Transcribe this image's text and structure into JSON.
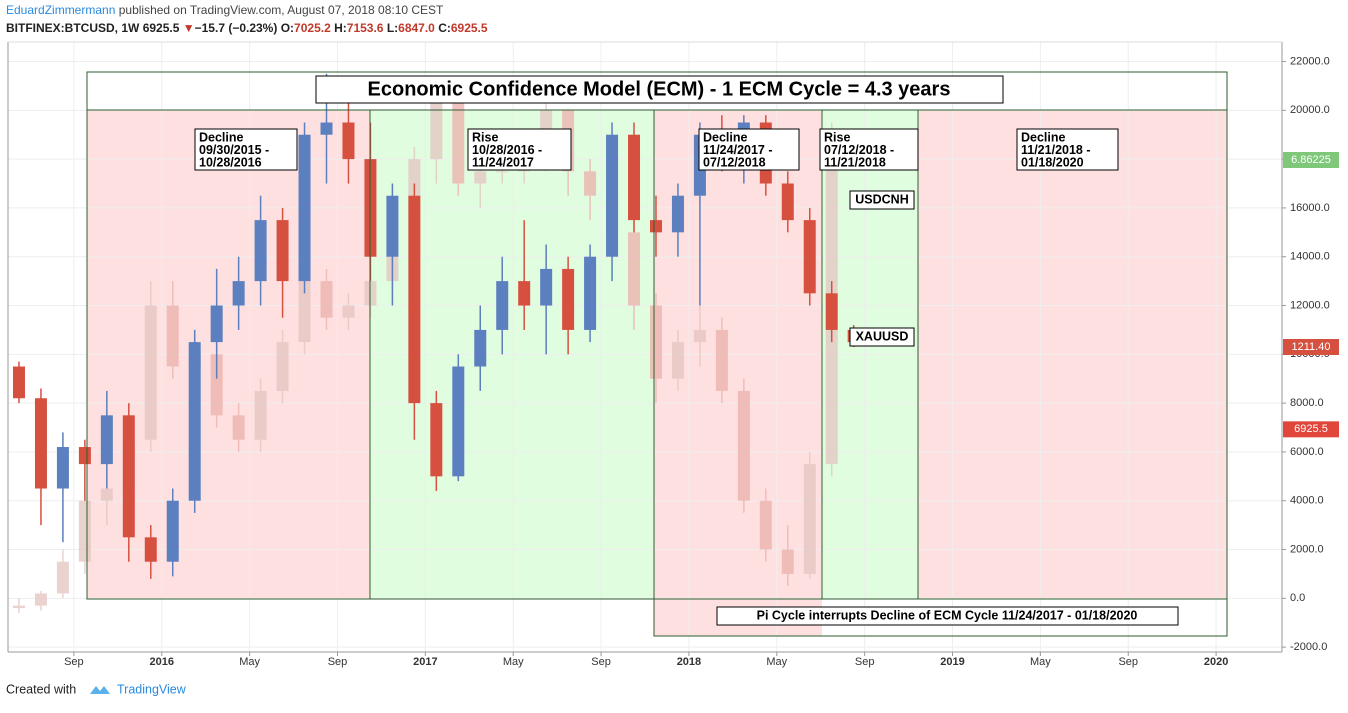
{
  "header": {
    "author": "EduardZimmermann",
    "published": "published on TradingView.com, August 07, 2018 08:10 CEST",
    "symbol": "BITFINEX:BTCUSD, 1W",
    "last": "6925.5",
    "arrow": "▼",
    "change": "−15.7 (−0.23%)",
    "ohlc": [
      {
        "label": "O:",
        "value": "7025.2"
      },
      {
        "label": "H:",
        "value": "7153.6"
      },
      {
        "label": "L:",
        "value": "6847.0"
      },
      {
        "label": "C:",
        "value": "6925.5"
      }
    ]
  },
  "chart_data": {
    "type": "candlestick",
    "title": "Economic Confidence Model (ECM) - 1 ECM Cycle = 4.3 years",
    "xlim": [
      "2015-06",
      "2020-04"
    ],
    "xticks": [
      {
        "value": "2015-09",
        "label": "Sep"
      },
      {
        "value": "2016-01",
        "label": "2016"
      },
      {
        "value": "2016-05",
        "label": "May"
      },
      {
        "value": "2016-09",
        "label": "Sep"
      },
      {
        "value": "2017-01",
        "label": "2017"
      },
      {
        "value": "2017-05",
        "label": "May"
      },
      {
        "value": "2017-09",
        "label": "Sep"
      },
      {
        "value": "2018-01",
        "label": "2018"
      },
      {
        "value": "2018-05",
        "label": "May"
      },
      {
        "value": "2018-09",
        "label": "Sep"
      },
      {
        "value": "2019-01",
        "label": "2019"
      },
      {
        "value": "2019-05",
        "label": "May"
      },
      {
        "value": "2019-09",
        "label": "Sep"
      },
      {
        "value": "2020-01",
        "label": "2020"
      }
    ],
    "ylim": [
      -2200,
      22800
    ],
    "yticks": [
      {
        "value": -2000,
        "label": "-2000.0"
      },
      {
        "value": 0,
        "label": "0.0"
      },
      {
        "value": 2000,
        "label": "2000.0"
      },
      {
        "value": 4000,
        "label": "4000.0"
      },
      {
        "value": 6000,
        "label": "6000.0"
      },
      {
        "value": 8000,
        "label": "8000.0"
      },
      {
        "value": 10000,
        "label": "10000.0"
      },
      {
        "value": 12000,
        "label": "12000.0"
      },
      {
        "value": 14000,
        "label": "14000.0"
      },
      {
        "value": 16000,
        "label": "16000.0"
      },
      {
        "value": 18000,
        "label": "18000.0"
      },
      {
        "value": 20000,
        "label": "20000.0"
      },
      {
        "value": 22000,
        "label": "22000.0"
      }
    ],
    "grid": true,
    "series": [
      {
        "color_up": "#e3c4c0",
        "color_down": "#ecb0ab",
        "opacity": 0.75,
        "x": [
          "2015-06",
          "2015-07",
          "2015-08",
          "2015-09",
          "2015-10",
          "2015-11",
          "2015-12",
          "2016-01",
          "2016-02",
          "2016-03",
          "2016-04",
          "2016-05",
          "2016-06",
          "2016-07",
          "2016-08",
          "2016-09",
          "2016-10",
          "2016-11",
          "2016-12",
          "2017-01",
          "2017-02",
          "2017-03",
          "2017-04",
          "2017-05",
          "2017-06",
          "2017-07",
          "2017-08",
          "2017-09",
          "2017-10",
          "2017-11",
          "2017-12",
          "2018-01",
          "2018-02",
          "2018-03",
          "2018-04",
          "2018-05",
          "2018-06",
          "2018-07"
        ],
        "open": [
          -400,
          -300,
          200,
          1500,
          4000,
          4500,
          6500,
          12000,
          9500,
          10000,
          7500,
          6500,
          8500,
          10500,
          13000,
          11500,
          12000,
          13000,
          14000,
          18000,
          20500,
          17000,
          17500,
          17500,
          18000,
          20000,
          17500,
          16500,
          15000,
          12000,
          9000,
          10500,
          11000,
          8500,
          4000,
          2000,
          1000,
          5500
        ],
        "high": [
          0,
          300,
          2000,
          4500,
          5500,
          7000,
          13000,
          13000,
          11000,
          10500,
          8000,
          9000,
          11000,
          13500,
          13500,
          12500,
          13500,
          15000,
          18500,
          21000,
          21000,
          18500,
          19000,
          18500,
          20500,
          20000,
          18000,
          16800,
          15500,
          12500,
          11000,
          12000,
          11500,
          9000,
          4500,
          3000,
          6000,
          19500
        ],
        "low": [
          -600,
          -500,
          0,
          1000,
          3000,
          3500,
          6000,
          9000,
          8500,
          7000,
          6000,
          6000,
          8000,
          10000,
          11000,
          11000,
          11500,
          12500,
          13500,
          17000,
          16500,
          16000,
          17000,
          17000,
          17500,
          16500,
          15500,
          14500,
          11000,
          8000,
          8500,
          9500,
          8000,
          3500,
          1500,
          500,
          800,
          5000
        ],
        "close": [
          -300,
          200,
          1500,
          4000,
          4500,
          6500,
          12000,
          9500,
          10000,
          7500,
          6500,
          8500,
          10500,
          13000,
          11500,
          12000,
          13000,
          14000,
          18000,
          20500,
          17000,
          17500,
          17500,
          18000,
          20000,
          17500,
          16500,
          15000,
          12000,
          9000,
          10500,
          11000,
          8500,
          4000,
          2000,
          1000,
          5500,
          19000
        ]
      },
      {
        "color_up": "#5b7fbf",
        "color_down": "#d65040",
        "opacity": 1,
        "x": [
          "2015-06",
          "2015-07",
          "2015-08",
          "2015-09",
          "2015-10",
          "2015-11",
          "2015-12",
          "2016-01",
          "2016-02",
          "2016-03",
          "2016-04",
          "2016-05",
          "2016-06",
          "2016-07",
          "2016-08",
          "2016-09",
          "2016-10",
          "2016-11",
          "2016-12",
          "2017-01",
          "2017-02",
          "2017-03",
          "2017-04",
          "2017-05",
          "2017-06",
          "2017-07",
          "2017-08",
          "2017-09",
          "2017-10",
          "2017-11",
          "2017-12",
          "2018-01",
          "2018-02",
          "2018-03",
          "2018-04",
          "2018-05",
          "2018-06",
          "2018-07",
          "2018-08"
        ],
        "open": [
          9500,
          8200,
          4500,
          6200,
          5500,
          7500,
          2500,
          1500,
          4000,
          10500,
          12000,
          13000,
          15500,
          13000,
          19000,
          19500,
          18000,
          14000,
          16500,
          8000,
          5000,
          9500,
          11000,
          13000,
          12000,
          13500,
          11000,
          14000,
          19000,
          15500,
          15000,
          16500,
          19000,
          18000,
          19500,
          17000,
          15500,
          12500,
          11000
        ],
        "high": [
          9700,
          8600,
          6800,
          6500,
          8500,
          8000,
          3000,
          4500,
          11000,
          13500,
          14000,
          16500,
          16000,
          19500,
          21500,
          20500,
          19500,
          17000,
          17000,
          8500,
          10000,
          12000,
          14000,
          15500,
          14500,
          14000,
          14500,
          19500,
          19500,
          16500,
          17000,
          19500,
          19800,
          19800,
          19800,
          17500,
          16000,
          13000,
          11200
        ],
        "low": [
          8000,
          3000,
          2300,
          4000,
          4500,
          1500,
          800,
          900,
          3500,
          9000,
          11000,
          12000,
          11500,
          12500,
          17000,
          17000,
          13000,
          12000,
          6500,
          4400,
          4800,
          8500,
          10000,
          11000,
          10000,
          10000,
          10500,
          13000,
          15000,
          14000,
          14000,
          12000,
          17500,
          17000,
          16500,
          15000,
          12000,
          10500,
          10300
        ],
        "close": [
          8200,
          4500,
          6200,
          5500,
          7500,
          2500,
          1500,
          4000,
          10500,
          12000,
          13000,
          15500,
          13000,
          19000,
          19500,
          18000,
          14000,
          16500,
          8000,
          5000,
          9500,
          11000,
          13000,
          12000,
          13500,
          11000,
          14000,
          19000,
          15500,
          15000,
          16500,
          19000,
          18000,
          19500,
          17000,
          15500,
          12500,
          11000,
          10500
        ]
      }
    ],
    "price_labels": [
      {
        "text": "6.86225",
        "color": "#7fc87a"
      },
      {
        "text": "1211.40",
        "color": "#d65040"
      },
      {
        "value": 6925.5,
        "label": "6925.5",
        "color": "#e0463a"
      }
    ],
    "zones": [
      {
        "lines": [
          "Decline",
          "09/30/2015 -",
          "10/28/2016"
        ]
      },
      {
        "lines": [
          "Rise",
          "10/28/2016 -",
          "11/24/2017"
        ]
      },
      {
        "lines": [
          "Decline",
          "11/24/2017 -",
          "07/12/2018"
        ]
      },
      {
        "lines": [
          "Rise",
          "07/12/2018 -",
          "11/21/2018"
        ]
      },
      {
        "lines": [
          "Decline",
          "11/21/2018 -",
          "01/18/2020"
        ]
      }
    ],
    "symbols": [
      "USDCNH",
      "XAUUSD"
    ],
    "note": "Pi Cycle interrupts Decline of ECM Cycle 11/24/2017 - 01/18/2020"
  },
  "footer": {
    "created": "Created with",
    "brand": "TradingView"
  }
}
